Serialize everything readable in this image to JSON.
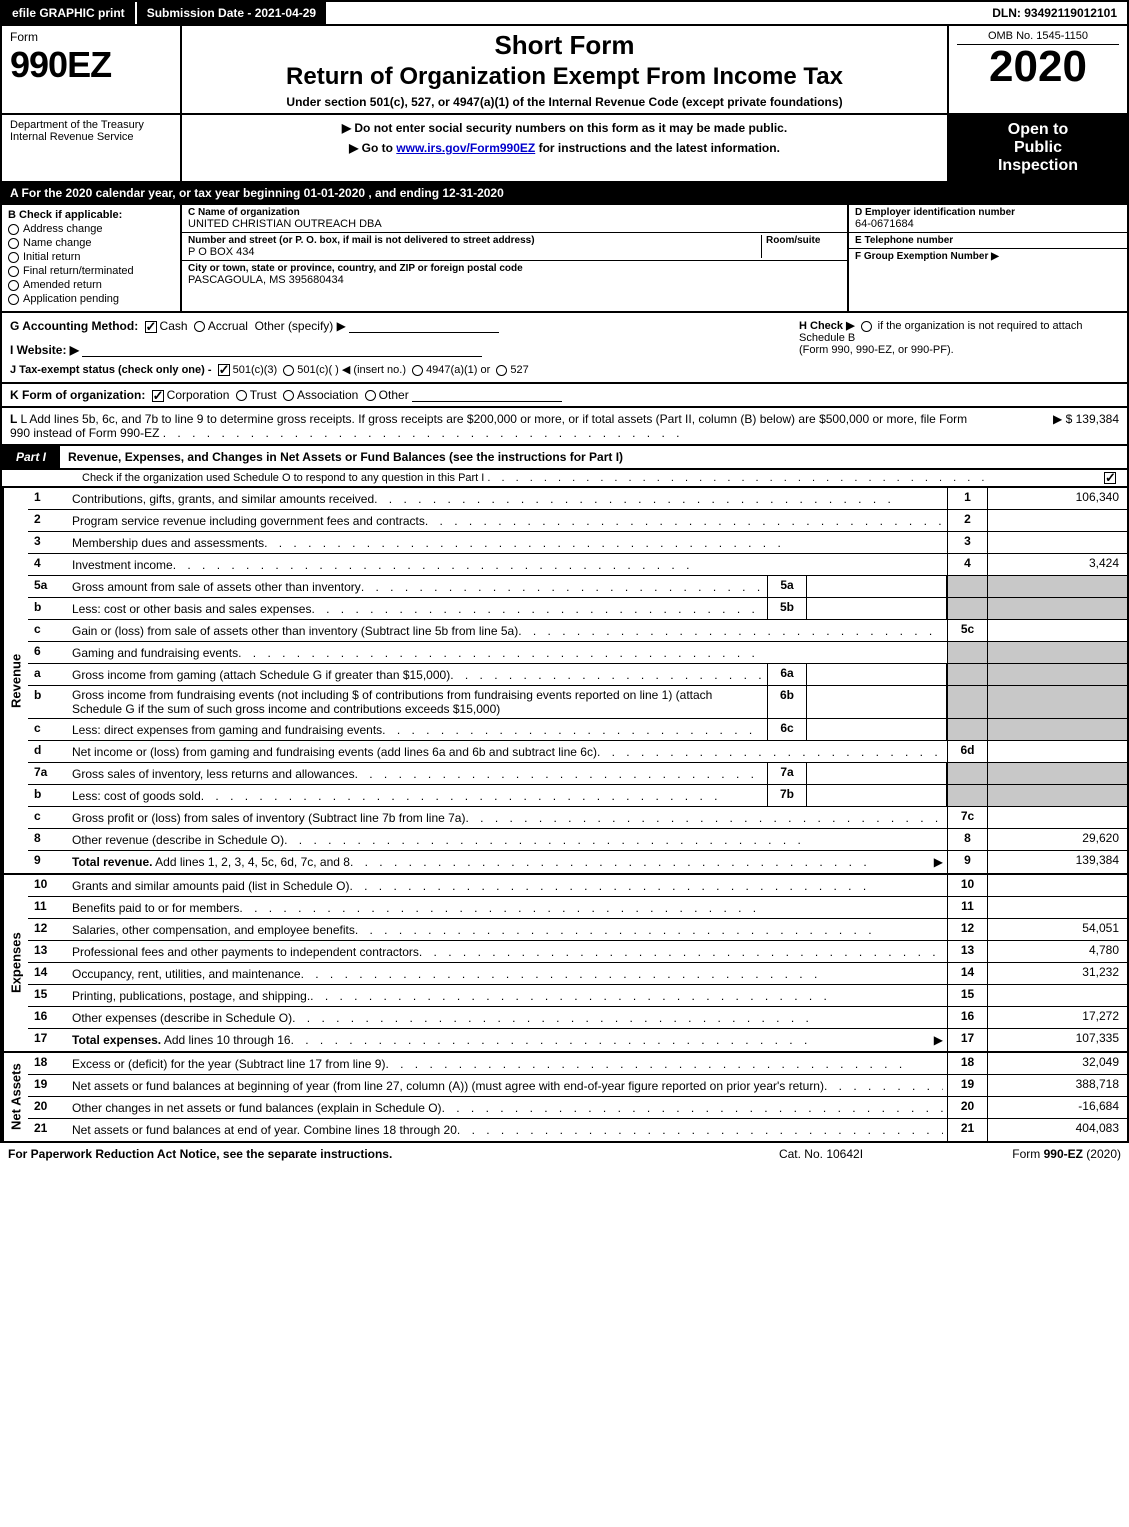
{
  "top_bar": {
    "efile": "efile GRAPHIC print",
    "submission_label": "Submission Date - 2021-04-29",
    "dln": "DLN: 93492119012101"
  },
  "header": {
    "form_word": "Form",
    "form_num": "990EZ",
    "title1": "Short Form",
    "title2": "Return of Organization Exempt From Income Tax",
    "subtitle": "Under section 501(c), 527, or 4947(a)(1) of the Internal Revenue Code (except private foundations)",
    "omb": "OMB No. 1545-1150",
    "year": "2020"
  },
  "sub_header": {
    "dept1": "Department of the Treasury",
    "dept2": "Internal Revenue Service",
    "warn": "▶ Do not enter social security numbers on this form as it may be made public.",
    "goto": "▶ Go to www.irs.gov/Form990EZ for instructions and the latest information.",
    "inspect1": "Open to",
    "inspect2": "Public",
    "inspect3": "Inspection"
  },
  "period": "A  For the 2020 calendar year, or tax year beginning 01-01-2020 , and ending 12-31-2020",
  "box_b": {
    "label": "B  Check if applicable:",
    "opts": [
      "Address change",
      "Name change",
      "Initial return",
      "Final return/terminated",
      "Amended return",
      "Application pending"
    ]
  },
  "box_c": {
    "name_label": "C Name of organization",
    "name": "UNITED CHRISTIAN OUTREACH DBA",
    "street_label": "Number and street (or P. O. box, if mail is not delivered to street address)",
    "room_label": "Room/suite",
    "street": "P O BOX 434",
    "city_label": "City or town, state or province, country, and ZIP or foreign postal code",
    "city": "PASCAGOULA, MS  395680434"
  },
  "box_de": {
    "d_label": "D Employer identification number",
    "ein": "64-0671684",
    "e_label": "E Telephone number",
    "f_label": "F Group Exemption Number  ▶"
  },
  "row_g": {
    "g": "G Accounting Method:",
    "cash": "Cash",
    "accrual": "Accrual",
    "other": "Other (specify) ▶",
    "h": "H  Check ▶",
    "h2": "if the organization is not required to attach Schedule B",
    "h3": "(Form 990, 990-EZ, or 990-PF).",
    "i": "I Website: ▶",
    "j": "J Tax-exempt status (check only one) -",
    "j1": "501(c)(3)",
    "j2": "501(c)(   ) ◀ (insert no.)",
    "j3": "4947(a)(1) or",
    "j4": "527"
  },
  "row_k": "K Form of organization:",
  "k_opts": [
    "Corporation",
    "Trust",
    "Association",
    "Other"
  ],
  "row_l": "L Add lines 5b, 6c, and 7b to line 9 to determine gross receipts. If gross receipts are $200,000 or more, or if total assets (Part II, column (B) below) are $500,000 or more, file Form 990 instead of Form 990-EZ",
  "row_l_val": "▶ $ 139,384",
  "part1": {
    "tab": "Part I",
    "title": "Revenue, Expenses, and Changes in Net Assets or Fund Balances (see the instructions for Part I)",
    "sub": "Check if the organization used Schedule O to respond to any question in this Part I"
  },
  "revenue_label": "Revenue",
  "expense_label": "Expenses",
  "netassets_label": "Net Assets",
  "lines": {
    "l1": {
      "n": "1",
      "d": "Contributions, gifts, grants, and similar amounts received",
      "rn": "1",
      "rv": "106,340"
    },
    "l2": {
      "n": "2",
      "d": "Program service revenue including government fees and contracts",
      "rn": "2",
      "rv": ""
    },
    "l3": {
      "n": "3",
      "d": "Membership dues and assessments",
      "rn": "3",
      "rv": ""
    },
    "l4": {
      "n": "4",
      "d": "Investment income",
      "rn": "4",
      "rv": "3,424"
    },
    "l5a": {
      "n": "5a",
      "d": "Gross amount from sale of assets other than inventory",
      "sn": "5a",
      "sv": ""
    },
    "l5b": {
      "n": "b",
      "d": "Less: cost or other basis and sales expenses",
      "sn": "5b",
      "sv": ""
    },
    "l5c": {
      "n": "c",
      "d": "Gain or (loss) from sale of assets other than inventory (Subtract line 5b from line 5a)",
      "rn": "5c",
      "rv": ""
    },
    "l6": {
      "n": "6",
      "d": "Gaming and fundraising events"
    },
    "l6a": {
      "n": "a",
      "d": "Gross income from gaming (attach Schedule G if greater than $15,000)",
      "sn": "6a",
      "sv": ""
    },
    "l6b": {
      "n": "b",
      "d": "Gross income from fundraising events (not including $                of contributions from fundraising events reported on line 1) (attach Schedule G if the sum of such gross income and contributions exceeds $15,000)",
      "sn": "6b",
      "sv": ""
    },
    "l6c": {
      "n": "c",
      "d": "Less: direct expenses from gaming and fundraising events",
      "sn": "6c",
      "sv": ""
    },
    "l6d": {
      "n": "d",
      "d": "Net income or (loss) from gaming and fundraising events (add lines 6a and 6b and subtract line 6c)",
      "rn": "6d",
      "rv": ""
    },
    "l7a": {
      "n": "7a",
      "d": "Gross sales of inventory, less returns and allowances",
      "sn": "7a",
      "sv": ""
    },
    "l7b": {
      "n": "b",
      "d": "Less: cost of goods sold",
      "sn": "7b",
      "sv": ""
    },
    "l7c": {
      "n": "c",
      "d": "Gross profit or (loss) from sales of inventory (Subtract line 7b from line 7a)",
      "rn": "7c",
      "rv": ""
    },
    "l8": {
      "n": "8",
      "d": "Other revenue (describe in Schedule O)",
      "rn": "8",
      "rv": "29,620"
    },
    "l9": {
      "n": "9",
      "d": "Total revenue. Add lines 1, 2, 3, 4, 5c, 6d, 7c, and 8",
      "rn": "9",
      "rv": "139,384",
      "bold": true,
      "arrow": true
    },
    "l10": {
      "n": "10",
      "d": "Grants and similar amounts paid (list in Schedule O)",
      "rn": "10",
      "rv": ""
    },
    "l11": {
      "n": "11",
      "d": "Benefits paid to or for members",
      "rn": "11",
      "rv": ""
    },
    "l12": {
      "n": "12",
      "d": "Salaries, other compensation, and employee benefits",
      "rn": "12",
      "rv": "54,051"
    },
    "l13": {
      "n": "13",
      "d": "Professional fees and other payments to independent contractors",
      "rn": "13",
      "rv": "4,780"
    },
    "l14": {
      "n": "14",
      "d": "Occupancy, rent, utilities, and maintenance",
      "rn": "14",
      "rv": "31,232"
    },
    "l15": {
      "n": "15",
      "d": "Printing, publications, postage, and shipping.",
      "rn": "15",
      "rv": ""
    },
    "l16": {
      "n": "16",
      "d": "Other expenses (describe in Schedule O)",
      "rn": "16",
      "rv": "17,272"
    },
    "l17": {
      "n": "17",
      "d": "Total expenses. Add lines 10 through 16",
      "rn": "17",
      "rv": "107,335",
      "bold": true,
      "arrow": true
    },
    "l18": {
      "n": "18",
      "d": "Excess or (deficit) for the year (Subtract line 17 from line 9)",
      "rn": "18",
      "rv": "32,049"
    },
    "l19": {
      "n": "19",
      "d": "Net assets or fund balances at beginning of year (from line 27, column (A)) (must agree with end-of-year figure reported on prior year's return)",
      "rn": "19",
      "rv": "388,718"
    },
    "l20": {
      "n": "20",
      "d": "Other changes in net assets or fund balances (explain in Schedule O)",
      "rn": "20",
      "rv": "-16,684"
    },
    "l21": {
      "n": "21",
      "d": "Net assets or fund balances at end of year. Combine lines 18 through 20",
      "rn": "21",
      "rv": "404,083"
    }
  },
  "footer": {
    "l": "For Paperwork Reduction Act Notice, see the separate instructions.",
    "m": "Cat. No. 10642I",
    "r": "Form 990-EZ (2020)"
  },
  "dots": ".   .   .   .   .   .   .   .   .   .   .   .   .   .   .   .   .   .   .   .   .   .   .   .   .   .   .   .   .   .   .   .   .   .   .   ."
}
